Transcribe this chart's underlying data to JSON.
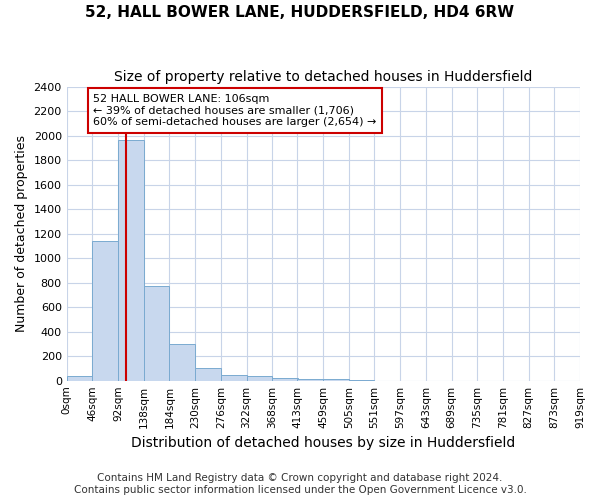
{
  "title": "52, HALL BOWER LANE, HUDDERSFIELD, HD4 6RW",
  "subtitle": "Size of property relative to detached houses in Huddersfield",
  "xlabel": "Distribution of detached houses by size in Huddersfield",
  "ylabel": "Number of detached properties",
  "bin_edges": [
    0,
    46,
    92,
    138,
    184,
    230,
    276,
    322,
    368,
    413,
    459,
    505,
    551,
    597,
    643,
    689,
    735,
    781,
    827,
    873,
    919
  ],
  "bar_heights": [
    35,
    1140,
    1960,
    770,
    300,
    100,
    50,
    35,
    25,
    15,
    10,
    8,
    0,
    0,
    0,
    0,
    0,
    0,
    0,
    0
  ],
  "bar_color": "#c8d8ee",
  "bar_edge_color": "#7aaad0",
  "property_size": 106,
  "red_line_color": "#cc0000",
  "ylim": [
    0,
    2400
  ],
  "yticks": [
    0,
    200,
    400,
    600,
    800,
    1000,
    1200,
    1400,
    1600,
    1800,
    2000,
    2200,
    2400
  ],
  "annotation_text": "52 HALL BOWER LANE: 106sqm\n← 39% of detached houses are smaller (1,706)\n60% of semi-detached houses are larger (2,654) →",
  "annotation_box_color": "#ffffff",
  "annotation_box_edge_color": "#cc0000",
  "footer_line1": "Contains HM Land Registry data © Crown copyright and database right 2024.",
  "footer_line2": "Contains public sector information licensed under the Open Government Licence v3.0.",
  "background_color": "#ffffff",
  "plot_background_color": "#ffffff",
  "grid_color": "#c8d4e8",
  "title_fontsize": 11,
  "subtitle_fontsize": 10,
  "xlabel_fontsize": 10,
  "ylabel_fontsize": 9,
  "tick_fontsize": 8,
  "footer_fontsize": 7.5
}
